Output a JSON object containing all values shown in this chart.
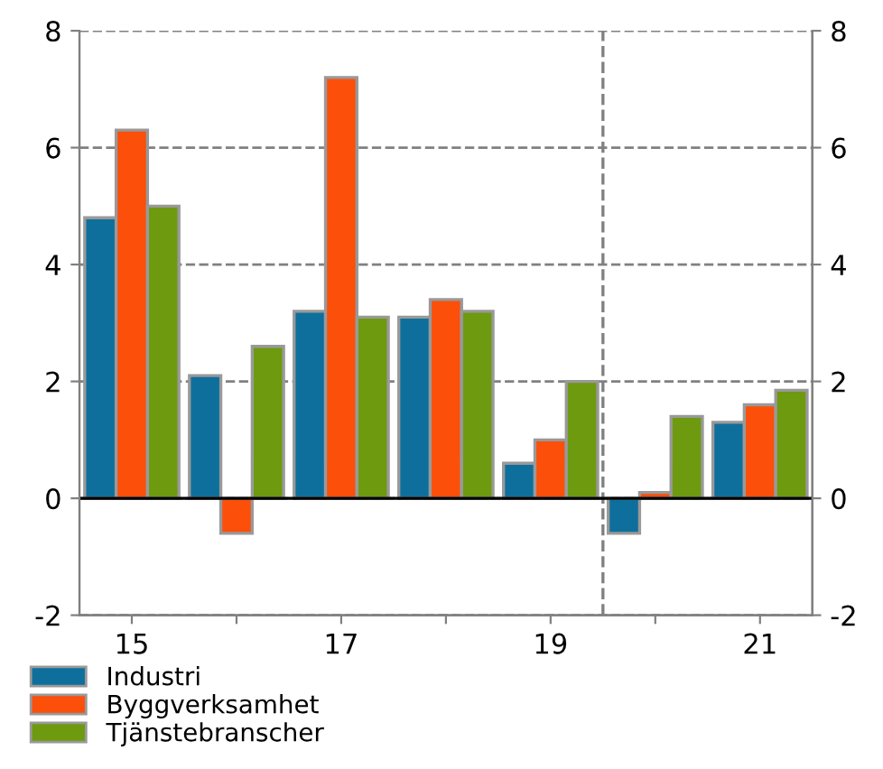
{
  "chart_data": {
    "type": "bar",
    "x": [
      2015,
      2016,
      2017,
      2018,
      2019,
      2020,
      2021
    ],
    "series": [
      {
        "name": "Industri",
        "color": "#0e6f9c",
        "values": [
          4.8,
          2.1,
          3.2,
          3.1,
          0.6,
          -0.6,
          1.3
        ]
      },
      {
        "name": "Byggverksamhet",
        "color": "#fb4f0a",
        "values": [
          6.3,
          -0.6,
          7.2,
          3.4,
          1.0,
          0.1,
          1.6
        ]
      },
      {
        "name": "Tjänstebranscher",
        "color": "#6e9a10",
        "values": [
          5.0,
          2.6,
          3.1,
          3.2,
          2.0,
          1.4,
          1.85
        ]
      }
    ],
    "xlim": [
      2014.5,
      2021.5
    ],
    "xticks": [
      {
        "value": 2015,
        "label": "15"
      },
      {
        "value": 2016,
        "label": null
      },
      {
        "value": 2017,
        "label": "17"
      },
      {
        "value": 2018,
        "label": null
      },
      {
        "value": 2019,
        "label": "19"
      },
      {
        "value": 2020,
        "label": null
      },
      {
        "value": 2021,
        "label": "21"
      }
    ],
    "ylim": [
      -2,
      8
    ],
    "yticks": [
      -2,
      0,
      2,
      4,
      6,
      8
    ],
    "y2lim": [
      -2,
      8
    ],
    "y2ticks": [
      -2,
      0,
      2,
      4,
      6,
      8
    ],
    "ref_lines": [
      {
        "axis": "x",
        "value": 2019.5,
        "color": "#808080",
        "line_style": "dashed"
      },
      {
        "axis": "y",
        "value": 0,
        "color": "#000000",
        "line_style": "solid"
      }
    ],
    "grid": "y",
    "legend": "bottom"
  }
}
